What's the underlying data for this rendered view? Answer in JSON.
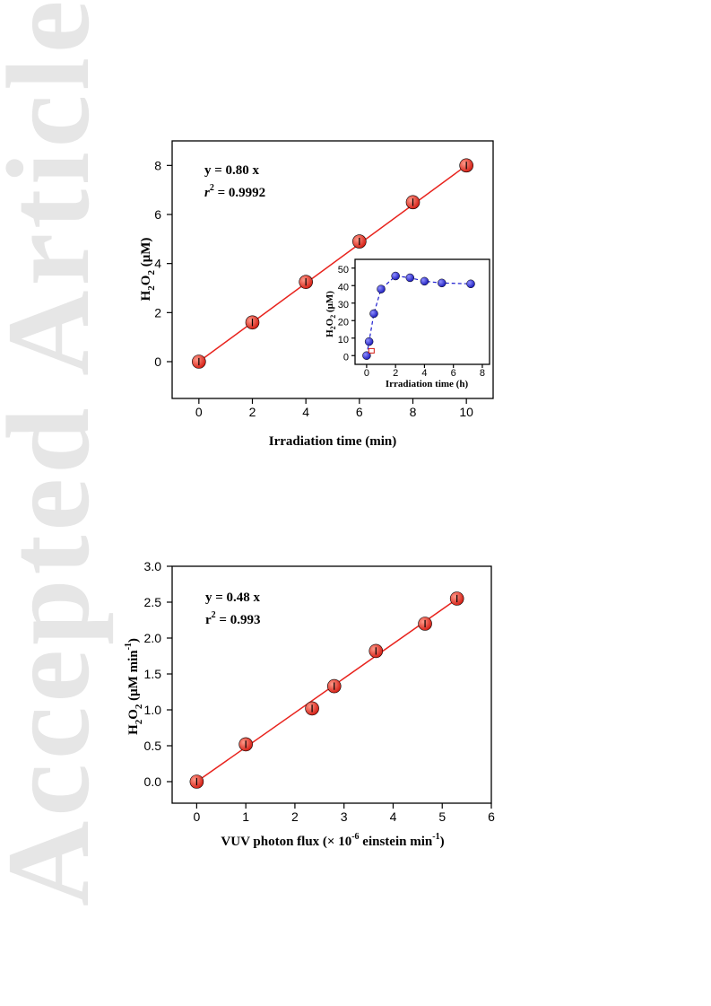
{
  "watermark": {
    "text": "Accepted Article"
  },
  "chart_data": [
    {
      "type": "scatter",
      "xlabel_main": "Irradiation time (min)",
      "ylabel": "H2O2 (μM)",
      "xlim": [
        -1,
        11
      ],
      "ylim": [
        -1.5,
        9
      ],
      "xticks": [
        0,
        2,
        4,
        6,
        8,
        10
      ],
      "yticks": [
        0,
        2,
        4,
        6,
        8
      ],
      "annotation": {
        "line1": "y = 0.80 x",
        "line2_prefix": "r",
        "line2_sup": "2",
        "line2_suffix": " = 0.9992"
      },
      "series": [
        {
          "values": [
            [
              0,
              0
            ],
            [
              2,
              1.6
            ],
            [
              4,
              3.25
            ],
            [
              6,
              4.9
            ],
            [
              8,
              6.5
            ],
            [
              10,
              8.0
            ]
          ],
          "color": "#e8231d"
        }
      ],
      "fit": {
        "slope": 0.8,
        "x_range": [
          0,
          10
        ],
        "color": "#e8231d"
      },
      "inset": {
        "type": "line",
        "xlabel": "Irradiation time (h)",
        "ylabel": "H2O2 (μM)",
        "xlim": [
          -0.8,
          8.5
        ],
        "ylim": [
          -5,
          55
        ],
        "xticks": [
          0,
          2,
          4,
          6,
          8
        ],
        "yticks": [
          0,
          10,
          20,
          30,
          40,
          50
        ],
        "series": [
          {
            "values": [
              [
                0,
                0
              ],
              [
                0.17,
                8
              ],
              [
                0.5,
                24
              ],
              [
                1,
                38
              ],
              [
                2,
                45.5
              ],
              [
                3,
                44.5
              ],
              [
                4,
                42.5
              ],
              [
                5.2,
                41.5
              ],
              [
                7.2,
                41
              ]
            ],
            "color": "#2020d0"
          }
        ]
      }
    },
    {
      "type": "scatter",
      "xlabel_main": "VUV photon flux (× 10",
      "xlabel_sup1": "-6",
      "xlabel_mid": " einstein min",
      "xlabel_sup2": "-1",
      "xlabel_end": ")",
      "ylabel": "H2O2 (μM min-1)",
      "xlim": [
        -0.5,
        6
      ],
      "ylim": [
        -0.3,
        3.0
      ],
      "xticks": [
        0,
        1,
        2,
        3,
        4,
        5,
        6
      ],
      "yticks": [
        0.0,
        0.5,
        1.0,
        1.5,
        2.0,
        2.5,
        3.0
      ],
      "annotation": {
        "line1": "y = 0.48 x",
        "line2_prefix": "r",
        "line2_sup": "2",
        "line2_suffix": " = 0.993"
      },
      "series": [
        {
          "values": [
            [
              0,
              0.0
            ],
            [
              1.0,
              0.52
            ],
            [
              2.35,
              1.02
            ],
            [
              2.8,
              1.33
            ],
            [
              3.65,
              1.82
            ],
            [
              4.65,
              2.2
            ],
            [
              5.3,
              2.55
            ]
          ],
          "color": "#e8231d"
        }
      ],
      "fit": {
        "slope": 0.48,
        "x_range": [
          0,
          5.3
        ],
        "color": "#e8231d"
      }
    }
  ]
}
